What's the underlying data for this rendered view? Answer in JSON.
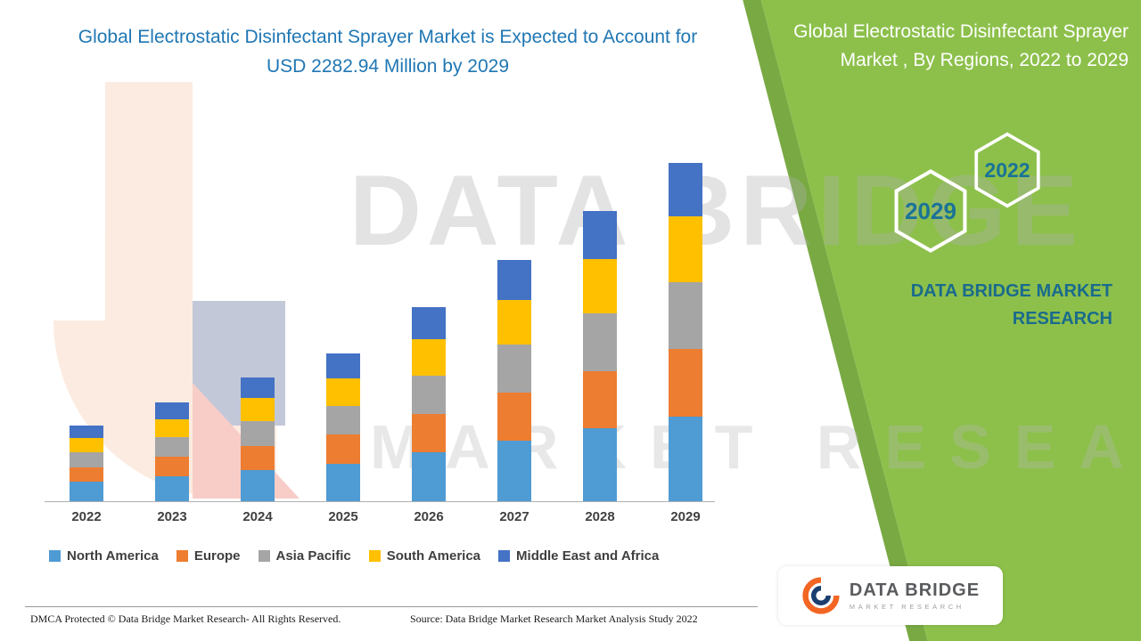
{
  "header": {
    "main_title": "Global Electrostatic Disinfectant Sprayer Market is Expected to Account for USD 2282.94 Million by 2029"
  },
  "side_panel": {
    "title": "Global Electrostatic Disinfectant Sprayer Market , By Regions, 2022 to 2029",
    "hexagons": [
      "2022",
      "2029"
    ],
    "brand_text": "DATA BRIDGE MARKET RESEARCH",
    "colors": {
      "background": "#8dc04b",
      "edge_stripe": "#79a943",
      "accent_text": "#1a6b8c",
      "hex_year_text": "#1a7397"
    }
  },
  "chart_data": {
    "type": "bar",
    "stacked": true,
    "title": "Global Electrostatic Disinfectant Sprayer Market is Expected to Account for USD 2282.94 Million by 2029",
    "value_unit": "USD Million",
    "categories": [
      "2022",
      "2023",
      "2024",
      "2025",
      "2026",
      "2027",
      "2028",
      "2029"
    ],
    "series": [
      {
        "name": "North America",
        "color": "#4f9bd4",
        "values": [
          130,
          170,
          210,
          250,
          330,
          410,
          490,
          570
        ]
      },
      {
        "name": "Europe",
        "color": "#ed7d31",
        "values": [
          100,
          130,
          165,
          200,
          260,
          325,
          390,
          460
        ]
      },
      {
        "name": "Asia Pacific",
        "color": "#a5a5a5",
        "values": [
          100,
          130,
          165,
          195,
          260,
          320,
          390,
          450
        ]
      },
      {
        "name": "South America",
        "color": "#ffc000",
        "values": [
          95,
          125,
          155,
          185,
          245,
          305,
          365,
          440
        ]
      },
      {
        "name": "Middle East and Africa",
        "color": "#4472c4",
        "values": [
          85,
          111,
          139,
          166,
          213,
          266,
          321,
          362.94
        ]
      }
    ],
    "totals": [
      510,
      666,
      834,
      996,
      1308,
      1626,
      1956,
      2282.94
    ],
    "ylim": [
      0,
      2400
    ],
    "grid": false,
    "legend_position": "bottom"
  },
  "watermark": {
    "line1": "DATA BRIDGE",
    "line2": "MARKET RESEARCH"
  },
  "footer": {
    "dmca": "DMCA Protected © Data Bridge Market Research- All Rights Reserved.",
    "source": "Source: Data Bridge Market Research Market Analysis Study 2022"
  },
  "logo_card": {
    "name": "DATA BRIDGE",
    "subtitle": "MARKET RESEARCH"
  }
}
